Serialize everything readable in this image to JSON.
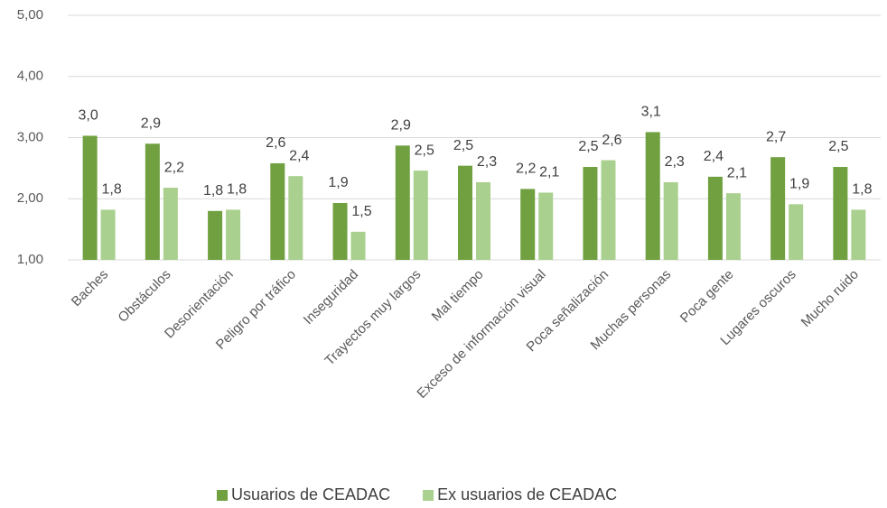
{
  "chart_data": {
    "type": "bar",
    "categories": [
      "Baches",
      "Obstáculos",
      "Desorientación",
      "Peligro por tráfico",
      "Inseguridad",
      "Trayectos muy largos",
      "Mal tiempo",
      "Exceso de información visual",
      "Poca señalización",
      "Muchas personas",
      "Poca gente",
      "Lugares oscuros",
      "Mucho ruido"
    ],
    "series": [
      {
        "name": "Usuarios de CEADAC",
        "color": "#70a040",
        "values": [
          3.03,
          2.9,
          1.8,
          2.58,
          1.93,
          2.87,
          2.54,
          2.16,
          2.52,
          3.09,
          2.36,
          2.68,
          2.52
        ],
        "value_labels": [
          "3,0",
          "2,9",
          "1,8",
          "2,6",
          "1,9",
          "2,9",
          "2,5",
          "2,2",
          "2,5",
          "3,1",
          "2,4",
          "2,7",
          "2,5"
        ]
      },
      {
        "name": "Ex usuarios de CEADAC",
        "color": "#a9d08e",
        "values": [
          1.82,
          2.18,
          1.82,
          2.37,
          1.46,
          2.46,
          2.27,
          2.1,
          2.63,
          2.27,
          2.09,
          1.91,
          1.82
        ],
        "value_labels": [
          "1,8",
          "2,2",
          "1,8",
          "2,4",
          "1,5",
          "2,5",
          "2,3",
          "2,1",
          "2,6",
          "2,3",
          "2,1",
          "1,9",
          "1,8"
        ]
      }
    ],
    "ylim": [
      1,
      5
    ],
    "yticks": [
      {
        "value": 1,
        "label": "1,00"
      },
      {
        "value": 2,
        "label": "2,00"
      },
      {
        "value": 3,
        "label": "3,00"
      },
      {
        "value": 4,
        "label": "4,00"
      },
      {
        "value": 5,
        "label": "5,00"
      }
    ],
    "grid": true,
    "legend": "bottom"
  }
}
